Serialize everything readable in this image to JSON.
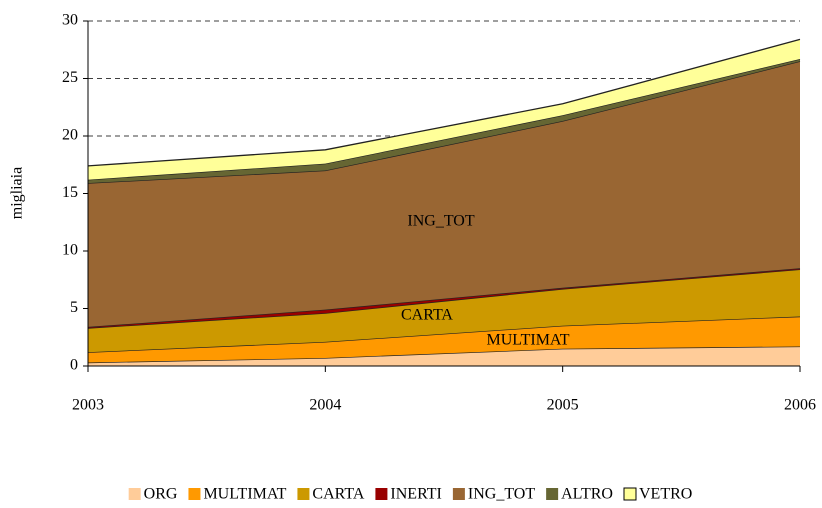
{
  "chart_data": {
    "type": "stacked_area",
    "y_label": "migliaia",
    "categories": [
      "2003",
      "2004",
      "2005",
      "2006"
    ],
    "series": [
      {
        "name": "ORG",
        "color": "#ffcc99",
        "values": [
          0.3,
          0.7,
          1.5,
          1.7
        ]
      },
      {
        "name": "MULTIMAT",
        "color": "#ff9900",
        "values": [
          0.9,
          1.4,
          2.0,
          2.6
        ]
      },
      {
        "name": "CARTA",
        "color": "#cc9900",
        "values": [
          2.1,
          2.5,
          3.2,
          4.1
        ]
      },
      {
        "name": "INERTI",
        "color": "#990000",
        "values": [
          0.1,
          0.3,
          0.1,
          0.1
        ]
      },
      {
        "name": "ING_TOT",
        "color": "#996633",
        "values": [
          12.5,
          12.1,
          14.5,
          18.0
        ]
      },
      {
        "name": "ALTRO",
        "color": "#666633",
        "values": [
          0.3,
          0.6,
          0.5,
          0.2
        ]
      },
      {
        "name": "VETRO",
        "color": "#ffff99",
        "values": [
          1.2,
          1.2,
          1.0,
          1.7
        ]
      }
    ],
    "annotations": [
      "ING_TOT",
      "CARTA",
      "MULTIMAT"
    ],
    "ylim": [
      0,
      30
    ],
    "yticks": [
      0,
      5,
      10,
      15,
      20,
      25,
      30
    ],
    "grid": true,
    "legend": "bottom"
  }
}
